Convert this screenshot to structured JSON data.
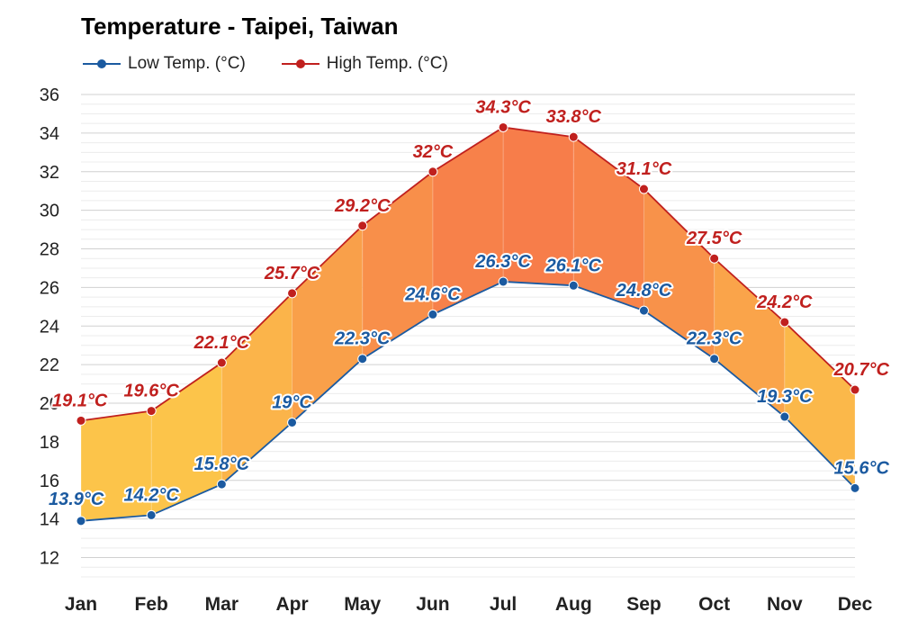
{
  "title": "Temperature - Taipei, Taiwan",
  "legend": {
    "low_label": "Low Temp. (°C)",
    "high_label": "High Temp. (°C)"
  },
  "colors": {
    "low": "#1b5aa0",
    "high": "#c0201e",
    "fill_cool": "#fcc44a",
    "fill_hot": "#f77d4a",
    "grid": "#dddddd"
  },
  "chart_data": {
    "type": "area",
    "title": "Temperature - Taipei, Taiwan",
    "categories": [
      "Jan",
      "Feb",
      "Mar",
      "Apr",
      "May",
      "Jun",
      "Jul",
      "Aug",
      "Sep",
      "Oct",
      "Nov",
      "Dec"
    ],
    "series": [
      {
        "name": "Low Temp. (°C)",
        "values": [
          13.9,
          14.2,
          15.8,
          19,
          22.3,
          24.6,
          26.3,
          26.1,
          24.8,
          22.3,
          19.3,
          15.6
        ],
        "labels": [
          "13.9°C",
          "14.2°C",
          "15.8°C",
          "19°C",
          "22.3°C",
          "24.6°C",
          "26.3°C",
          "26.1°C",
          "24.8°C",
          "22.3°C",
          "19.3°C",
          "15.6°C"
        ]
      },
      {
        "name": "High Temp. (°C)",
        "values": [
          19.1,
          19.6,
          22.1,
          25.7,
          29.2,
          32,
          34.3,
          33.8,
          31.1,
          27.5,
          24.2,
          20.7
        ],
        "labels": [
          "19.1°C",
          "19.6°C",
          "22.1°C",
          "25.7°C",
          "29.2°C",
          "32°C",
          "34.3°C",
          "33.8°C",
          "31.1°C",
          "27.5°C",
          "24.2°C",
          "20.7°C"
        ]
      }
    ],
    "yticks": [
      "12",
      "14",
      "16",
      "18",
      "20",
      "22",
      "24",
      "26",
      "28",
      "30",
      "32",
      "34",
      "36"
    ],
    "ylim": [
      11,
      36
    ],
    "grid": true,
    "legend_position": "top-left"
  }
}
